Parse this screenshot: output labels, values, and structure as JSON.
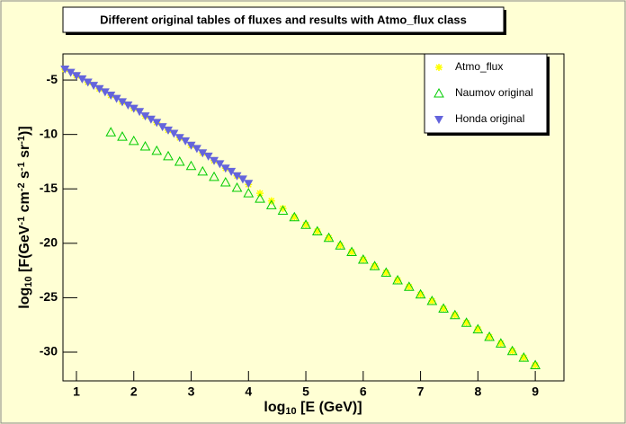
{
  "chart_data": {
    "type": "scatter",
    "title": "Different original tables of fluxes and results with Atmo_flux class",
    "x_label": [
      {
        "text": "log",
        "pos": "normal"
      },
      {
        "text": "10",
        "pos": "sub"
      },
      {
        "text": " [E (GeV)]",
        "pos": "normal"
      }
    ],
    "y_label": [
      {
        "text": "log",
        "pos": "normal"
      },
      {
        "text": "10",
        "pos": "sub"
      },
      {
        "text": " [F(GeV",
        "pos": "normal"
      },
      {
        "text": "-1",
        "pos": "sup"
      },
      {
        "text": " cm",
        "pos": "normal"
      },
      {
        "text": "-2",
        "pos": "sup"
      },
      {
        "text": " s",
        "pos": "normal"
      },
      {
        "text": "-1",
        "pos": "sup"
      },
      {
        "text": " sr",
        "pos": "normal"
      },
      {
        "text": "-1",
        "pos": "sup"
      },
      {
        "text": ")]",
        "pos": "normal"
      }
    ],
    "xlim": [
      0.765,
      9.5
    ],
    "ylim": [
      -32.64,
      -2.6
    ],
    "xticks": [
      1,
      2,
      3,
      4,
      5,
      6,
      7,
      8,
      9
    ],
    "yticks": [
      -5,
      -10,
      -15,
      -20,
      -25,
      -30
    ],
    "legend": "top right",
    "series": [
      {
        "name": "Atmo_flux",
        "color": "#ffff00",
        "marker": "star",
        "x": [
          0.8,
          1.0,
          1.2,
          1.4,
          1.6,
          1.8,
          2.0,
          2.2,
          2.4,
          2.6,
          2.8,
          3.0,
          3.2,
          3.4,
          3.6,
          3.8,
          4.0,
          4.2,
          4.4,
          4.6,
          4.8,
          5.0,
          5.2,
          5.4,
          5.6,
          5.8,
          6.0,
          6.2,
          6.4,
          6.6,
          6.8,
          7.0,
          7.2,
          7.4,
          7.6,
          7.8,
          8.0,
          8.2,
          8.4,
          8.6,
          8.8,
          9.0
        ],
        "values": [
          -4.0,
          -4.6,
          -5.2,
          -5.8,
          -6.4,
          -7.0,
          -7.6,
          -8.3,
          -8.9,
          -9.6,
          -10.3,
          -11.0,
          -11.7,
          -12.4,
          -13.1,
          -13.8,
          -14.6,
          -15.4,
          -16.1,
          -16.8,
          -17.6,
          -18.3,
          -18.9,
          -19.5,
          -20.2,
          -20.8,
          -21.5,
          -22.1,
          -22.7,
          -23.4,
          -24.0,
          -24.7,
          -25.3,
          -26.0,
          -26.6,
          -27.3,
          -27.9,
          -28.6,
          -29.2,
          -29.9,
          -30.5,
          -31.2
        ]
      },
      {
        "name": "Naumov original",
        "color": "#00cc00",
        "marker": "triangle-open",
        "x": [
          1.6,
          1.8,
          2.0,
          2.2,
          2.4,
          2.6,
          2.8,
          3.0,
          3.2,
          3.4,
          3.6,
          3.8,
          4.0,
          4.2,
          4.4,
          4.6,
          4.8,
          5.0,
          5.2,
          5.4,
          5.6,
          5.8,
          6.0,
          6.2,
          6.4,
          6.6,
          6.8,
          7.0,
          7.2,
          7.4,
          7.6,
          7.8,
          8.0,
          8.2,
          8.4,
          8.6,
          8.8,
          9.0
        ],
        "values": [
          -9.8,
          -10.2,
          -10.6,
          -11.1,
          -11.5,
          -12.0,
          -12.5,
          -12.9,
          -13.4,
          -13.9,
          -14.4,
          -14.9,
          -15.4,
          -15.9,
          -16.5,
          -17.0,
          -17.6,
          -18.3,
          -18.9,
          -19.5,
          -20.2,
          -20.8,
          -21.5,
          -22.1,
          -22.7,
          -23.4,
          -24.0,
          -24.7,
          -25.3,
          -26.0,
          -26.6,
          -27.3,
          -27.9,
          -28.6,
          -29.2,
          -29.9,
          -30.5,
          -31.2
        ]
      },
      {
        "name": "Honda original",
        "color": "#6464dc",
        "marker": "triangle-down",
        "x": [
          0.8,
          0.9,
          1.0,
          1.1,
          1.2,
          1.3,
          1.4,
          1.5,
          1.6,
          1.7,
          1.8,
          1.9,
          2.0,
          2.1,
          2.2,
          2.3,
          2.4,
          2.5,
          2.6,
          2.7,
          2.8,
          2.9,
          3.0,
          3.1,
          3.2,
          3.3,
          3.4,
          3.5,
          3.6,
          3.7,
          3.8,
          3.9,
          4.0
        ],
        "values": [
          -4.0,
          -4.3,
          -4.6,
          -4.9,
          -5.2,
          -5.5,
          -5.8,
          -6.1,
          -6.4,
          -6.7,
          -7.0,
          -7.3,
          -7.6,
          -7.9,
          -8.3,
          -8.6,
          -8.9,
          -9.3,
          -9.6,
          -9.9,
          -10.3,
          -10.6,
          -11.0,
          -11.3,
          -11.7,
          -12.0,
          -12.4,
          -12.7,
          -13.1,
          -13.4,
          -13.8,
          -14.1,
          -14.5
        ]
      }
    ]
  }
}
